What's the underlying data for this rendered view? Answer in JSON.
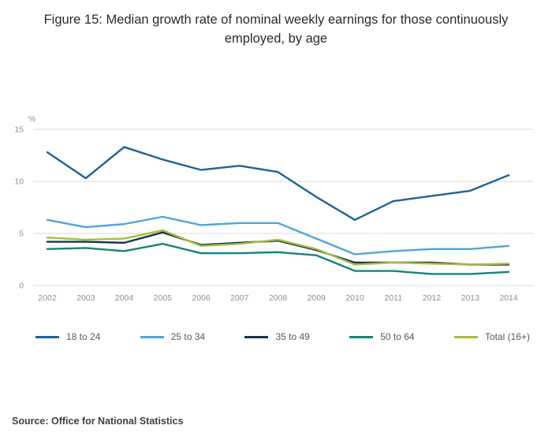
{
  "title": "Figure 15: Median growth rate of nominal weekly earnings for those continuously employed, by age",
  "source": "Source: Office for National Statistics",
  "chart_data": {
    "type": "line",
    "title": "Figure 15: Median growth rate of nominal weekly earnings for those continuously employed, by age",
    "xlabel": "",
    "ylabel": "%",
    "ylim": [
      0,
      15
    ],
    "yticks": [
      0,
      5,
      10,
      15
    ],
    "grid": true,
    "legend_position": "bottom",
    "x": [
      2002,
      2003,
      2004,
      2005,
      2006,
      2007,
      2008,
      2009,
      2010,
      2011,
      2012,
      2013,
      2014
    ],
    "series": [
      {
        "name": "18 to 24",
        "color": "#1F6395",
        "values": [
          12.8,
          10.3,
          13.3,
          12.1,
          11.1,
          11.5,
          10.9,
          8.5,
          6.3,
          8.1,
          8.6,
          9.1,
          10.6
        ]
      },
      {
        "name": "25 to 34",
        "color": "#4FA5D8",
        "values": [
          6.3,
          5.6,
          5.9,
          6.6,
          5.8,
          6.0,
          6.0,
          4.5,
          3.0,
          3.3,
          3.5,
          3.5,
          3.8
        ]
      },
      {
        "name": "35 to 49",
        "color": "#16344F",
        "values": [
          4.2,
          4.2,
          4.1,
          5.1,
          3.9,
          4.1,
          4.3,
          3.4,
          2.2,
          2.2,
          2.2,
          2.0,
          2.0
        ]
      },
      {
        "name": "50 to 64",
        "color": "#168576",
        "values": [
          3.5,
          3.6,
          3.3,
          4.0,
          3.1,
          3.1,
          3.2,
          2.9,
          1.4,
          1.4,
          1.1,
          1.1,
          1.3
        ]
      },
      {
        "name": "Total (16+)",
        "color": "#A8BD3A",
        "values": [
          4.6,
          4.4,
          4.5,
          5.3,
          3.8,
          4.0,
          4.4,
          3.5,
          2.0,
          2.2,
          2.1,
          2.0,
          2.1
        ]
      }
    ]
  }
}
